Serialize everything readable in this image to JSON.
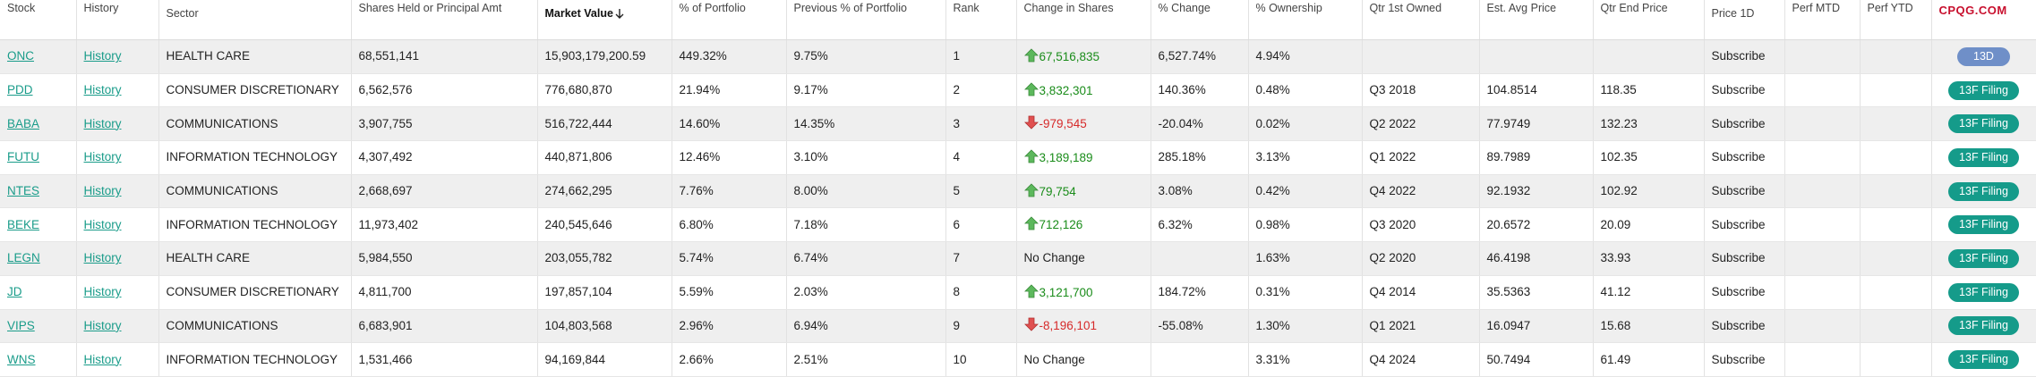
{
  "brand": "CPQG.COM",
  "headers": {
    "stock": "Stock",
    "history": "History",
    "sector": "Sector",
    "shares": "Shares Held or Principal Amt",
    "market_value": "Market Value",
    "pct_portfolio": "% of Portfolio",
    "prev_pct": "Previous % of Portfolio",
    "rank": "Rank",
    "change_shares": "Change in Shares",
    "pct_change": "% Change",
    "pct_ownership": "% Ownership",
    "qtr_first": "Qtr 1st Owned",
    "avg_price": "Est. Avg Price",
    "qtr_end_price": "Qtr End Price",
    "price_1d": "Price 1D",
    "perf_mtd": "Perf MTD",
    "perf_ytd": "Perf YTD"
  },
  "colors": {
    "up": "#1a8c1a",
    "down": "#d62a2a",
    "link": "#1a9c8a",
    "filing_button": "#159b8a",
    "thirteen_d_button": "#6f8fc8"
  },
  "rows": [
    {
      "stock": "ONC",
      "history": "History",
      "sector": "HEALTH CARE",
      "shares": "68,551,141",
      "market_value": "15,903,179,200.59",
      "pct_portfolio": "449.32%",
      "prev_pct": "9.75%",
      "rank": "1",
      "change": "67,516,835",
      "change_dir": "up",
      "pct_change": "6,527.74%",
      "pct_ownership": "4.94%",
      "qtr_first": "",
      "avg_price": "",
      "qtr_end_price": "",
      "price_1d": "Subscribe",
      "action": "13D",
      "action_style": "blue"
    },
    {
      "stock": "PDD",
      "history": "History",
      "sector": "CONSUMER DISCRETIONARY",
      "shares": "6,562,576",
      "market_value": "776,680,870",
      "pct_portfolio": "21.94%",
      "prev_pct": "9.17%",
      "rank": "2",
      "change": "3,832,301",
      "change_dir": "up",
      "pct_change": "140.36%",
      "pct_ownership": "0.48%",
      "qtr_first": "Q3 2018",
      "avg_price": "104.8514",
      "qtr_end_price": "118.35",
      "price_1d": "Subscribe",
      "action": "13F Filing",
      "action_style": "green"
    },
    {
      "stock": "BABA",
      "history": "History",
      "sector": "COMMUNICATIONS",
      "shares": "3,907,755",
      "market_value": "516,722,444",
      "pct_portfolio": "14.60%",
      "prev_pct": "14.35%",
      "rank": "3",
      "change": "-979,545",
      "change_dir": "down",
      "pct_change": "-20.04%",
      "pct_ownership": "0.02%",
      "qtr_first": "Q2 2022",
      "avg_price": "77.9749",
      "qtr_end_price": "132.23",
      "price_1d": "Subscribe",
      "action": "13F Filing",
      "action_style": "green"
    },
    {
      "stock": "FUTU",
      "history": "History",
      "sector": "INFORMATION TECHNOLOGY",
      "shares": "4,307,492",
      "market_value": "440,871,806",
      "pct_portfolio": "12.46%",
      "prev_pct": "3.10%",
      "rank": "4",
      "change": "3,189,189",
      "change_dir": "up",
      "pct_change": "285.18%",
      "pct_ownership": "3.13%",
      "qtr_first": "Q1 2022",
      "avg_price": "89.7989",
      "qtr_end_price": "102.35",
      "price_1d": "Subscribe",
      "action": "13F Filing",
      "action_style": "green"
    },
    {
      "stock": "NTES",
      "history": "History",
      "sector": "COMMUNICATIONS",
      "shares": "2,668,697",
      "market_value": "274,662,295",
      "pct_portfolio": "7.76%",
      "prev_pct": "8.00%",
      "rank": "5",
      "change": "79,754",
      "change_dir": "up",
      "pct_change": "3.08%",
      "pct_ownership": "0.42%",
      "qtr_first": "Q4 2022",
      "avg_price": "92.1932",
      "qtr_end_price": "102.92",
      "price_1d": "Subscribe",
      "action": "13F Filing",
      "action_style": "green"
    },
    {
      "stock": "BEKE",
      "history": "History",
      "sector": "INFORMATION TECHNOLOGY",
      "shares": "11,973,402",
      "market_value": "240,545,646",
      "pct_portfolio": "6.80%",
      "prev_pct": "7.18%",
      "rank": "6",
      "change": "712,126",
      "change_dir": "up",
      "pct_change": "6.32%",
      "pct_ownership": "0.98%",
      "qtr_first": "Q3 2020",
      "avg_price": "20.6572",
      "qtr_end_price": "20.09",
      "price_1d": "Subscribe",
      "action": "13F Filing",
      "action_style": "green"
    },
    {
      "stock": "LEGN",
      "history": "History",
      "sector": "HEALTH CARE",
      "shares": "5,984,550",
      "market_value": "203,055,782",
      "pct_portfolio": "5.74%",
      "prev_pct": "6.74%",
      "rank": "7",
      "change": "No Change",
      "change_dir": "none",
      "pct_change": "",
      "pct_ownership": "1.63%",
      "qtr_first": "Q2 2020",
      "avg_price": "46.4198",
      "qtr_end_price": "33.93",
      "price_1d": "Subscribe",
      "action": "13F Filing",
      "action_style": "green"
    },
    {
      "stock": "JD",
      "history": "History",
      "sector": "CONSUMER DISCRETIONARY",
      "shares": "4,811,700",
      "market_value": "197,857,104",
      "pct_portfolio": "5.59%",
      "prev_pct": "2.03%",
      "rank": "8",
      "change": "3,121,700",
      "change_dir": "up",
      "pct_change": "184.72%",
      "pct_ownership": "0.31%",
      "qtr_first": "Q4 2014",
      "avg_price": "35.5363",
      "qtr_end_price": "41.12",
      "price_1d": "Subscribe",
      "action": "13F Filing",
      "action_style": "green"
    },
    {
      "stock": "VIPS",
      "history": "History",
      "sector": "COMMUNICATIONS",
      "shares": "6,683,901",
      "market_value": "104,803,568",
      "pct_portfolio": "2.96%",
      "prev_pct": "6.94%",
      "rank": "9",
      "change": "-8,196,101",
      "change_dir": "down",
      "pct_change": "-55.08%",
      "pct_ownership": "1.30%",
      "qtr_first": "Q1 2021",
      "avg_price": "16.0947",
      "qtr_end_price": "15.68",
      "price_1d": "Subscribe",
      "action": "13F Filing",
      "action_style": "green"
    },
    {
      "stock": "WNS",
      "history": "History",
      "sector": "INFORMATION TECHNOLOGY",
      "shares": "1,531,466",
      "market_value": "94,169,844",
      "pct_portfolio": "2.66%",
      "prev_pct": "2.51%",
      "rank": "10",
      "change": "No Change",
      "change_dir": "none",
      "pct_change": "",
      "pct_ownership": "3.31%",
      "qtr_first": "Q4 2024",
      "avg_price": "50.7494",
      "qtr_end_price": "61.49",
      "price_1d": "Subscribe",
      "action": "13F Filing",
      "action_style": "green"
    }
  ]
}
